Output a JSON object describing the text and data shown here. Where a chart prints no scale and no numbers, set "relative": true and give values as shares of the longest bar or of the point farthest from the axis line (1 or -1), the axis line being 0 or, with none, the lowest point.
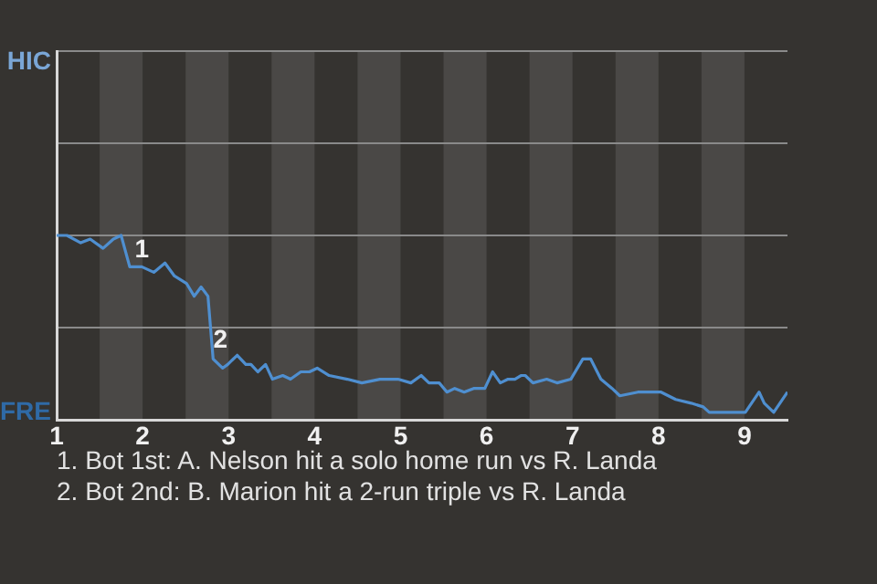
{
  "chart_data": {
    "type": "line",
    "x": [
      1,
      1.12,
      1.28,
      1.39,
      1.54,
      1.66,
      1.75,
      1.85,
      1.99,
      2.13,
      2.26,
      2.37,
      2.51,
      2.6,
      2.68,
      2.76,
      2.82,
      2.93,
      2.99,
      3.1,
      3.2,
      3.26,
      3.34,
      3.43,
      3.51,
      3.63,
      3.72,
      3.84,
      3.94,
      4.03,
      4.17,
      4.38,
      4.55,
      4.76,
      4.97,
      5.12,
      5.24,
      5.33,
      5.45,
      5.54,
      5.63,
      5.74,
      5.85,
      5.98,
      6.07,
      6.16,
      6.25,
      6.33,
      6.4,
      6.45,
      6.54,
      6.7,
      6.82,
      6.98,
      7.12,
      7.21,
      7.33,
      7.46,
      7.55,
      7.76,
      8.03,
      8.2,
      8.38,
      8.52,
      8.59,
      8.68,
      8.8,
      8.89,
      9.01,
      9.17,
      9.23,
      9.34,
      9.5
    ],
    "series": [
      {
        "color": "#4f8fd0",
        "values": [
          1,
          1,
          0.96,
          0.98,
          0.93,
          0.98,
          1,
          0.83,
          0.83,
          0.8,
          0.85,
          0.78,
          0.74,
          0.67,
          0.72,
          0.67,
          0.33,
          0.28,
          0.3,
          0.35,
          0.3,
          0.3,
          0.26,
          0.3,
          0.22,
          0.24,
          0.22,
          0.26,
          0.26,
          0.28,
          0.24,
          0.22,
          0.2,
          0.22,
          0.22,
          0.2,
          0.24,
          0.2,
          0.2,
          0.15,
          0.17,
          0.15,
          0.17,
          0.17,
          0.26,
          0.2,
          0.22,
          0.22,
          0.24,
          0.24,
          0.2,
          0.22,
          0.2,
          0.22,
          0.33,
          0.33,
          0.22,
          0.17,
          0.13,
          0.15,
          0.15,
          0.11,
          0.09,
          0.07,
          0.04,
          0.04,
          0.04,
          0.04,
          0.04,
          0.15,
          0.09,
          0.04,
          0.15
        ]
      }
    ],
    "relative": true,
    "xlim": [
      1,
      9.5
    ],
    "xticks": [
      1,
      2,
      3,
      4,
      5,
      6,
      7,
      8,
      9
    ],
    "ref_lines": [
      {
        "axis": "y",
        "value": 0.5,
        "color": "#8a8a8a"
      },
      {
        "axis": "y",
        "value": 1,
        "color": "#8a8a8a"
      },
      {
        "axis": "y",
        "value": 1.5,
        "color": "#8a8a8a"
      },
      {
        "axis": "y",
        "value": 2,
        "color": "#8a8a8a"
      }
    ],
    "marker": "none",
    "line_style": "solid",
    "legend": false,
    "bands": [
      {
        "axis": "x",
        "from": 1.5,
        "to": 2,
        "color": "#4a4846"
      },
      {
        "axis": "x",
        "from": 2.5,
        "to": 3,
        "color": "#4a4846"
      },
      {
        "axis": "x",
        "from": 3.5,
        "to": 4,
        "color": "#4a4846"
      },
      {
        "axis": "x",
        "from": 4.5,
        "to": 5,
        "color": "#4a4846"
      },
      {
        "axis": "x",
        "from": 5.5,
        "to": 6,
        "color": "#4a4846"
      },
      {
        "axis": "x",
        "from": 6.5,
        "to": 7,
        "color": "#4a4846"
      },
      {
        "axis": "x",
        "from": 7.5,
        "to": 8,
        "color": "#4a4846"
      },
      {
        "axis": "x",
        "from": 8.5,
        "to": 9,
        "color": "#4a4846"
      }
    ],
    "annotations": [
      "HIC",
      "FRE",
      {
        "text": "1",
        "x": 1.99,
        "y": 0.83
      },
      {
        "text": "2",
        "x": 2.82,
        "y": 0.33
      },
      "1. Bot 1st: A. Nelson hit a solo home run vs R. Landa",
      "2. Bot 2nd: B. Marion hit a 2-run triple vs R. Landa"
    ]
  }
}
